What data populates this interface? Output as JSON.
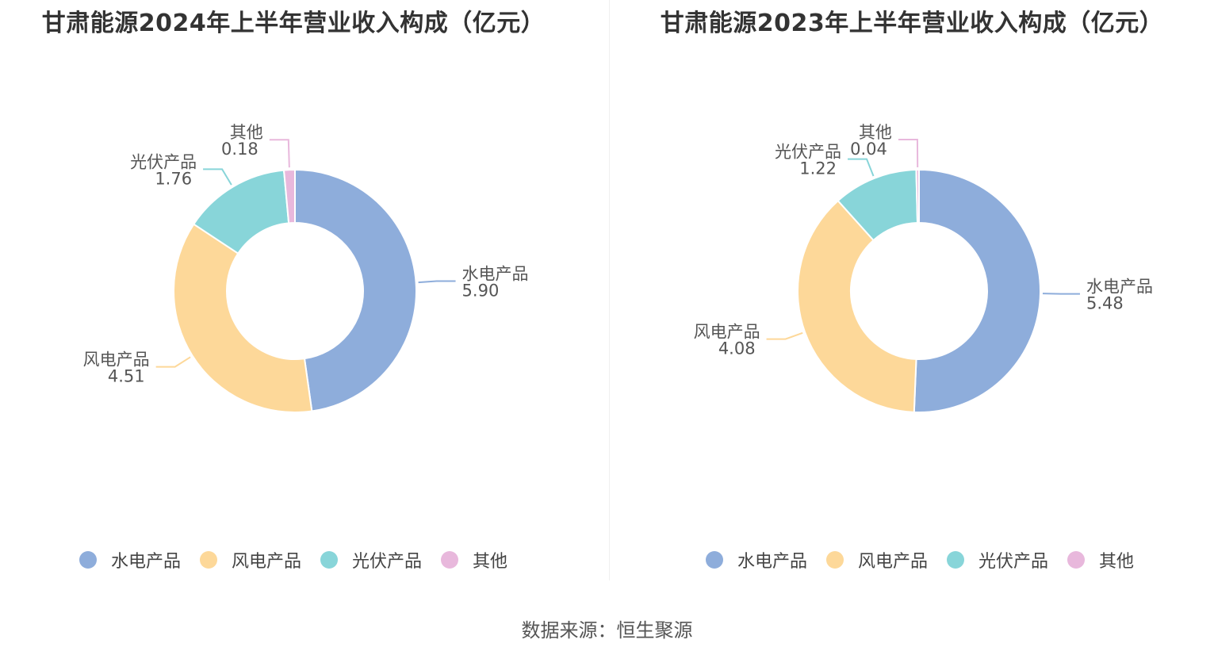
{
  "source": "数据来源：恒生聚源",
  "colors": [
    "#8eaddb",
    "#fdd899",
    "#88d5d9",
    "#e8b8dc"
  ],
  "chart_data": [
    {
      "type": "pie",
      "title": "甘肃能源2024年上半年营业收入构成（亿元）",
      "categories": [
        "水电产品",
        "风电产品",
        "光伏产品",
        "其他"
      ],
      "values": [
        5.9,
        4.51,
        1.76,
        0.18
      ],
      "value_labels": [
        "5.90",
        "4.51",
        "1.76",
        "0.18"
      ],
      "legend": "bottom",
      "donut": true
    },
    {
      "type": "pie",
      "title": "甘肃能源2023年上半年营业收入构成（亿元）",
      "categories": [
        "水电产品",
        "风电产品",
        "光伏产品",
        "其他"
      ],
      "values": [
        5.48,
        4.08,
        1.22,
        0.04
      ],
      "value_labels": [
        "5.48",
        "4.08",
        "1.22",
        "0.04"
      ],
      "legend": "bottom",
      "donut": true
    }
  ]
}
